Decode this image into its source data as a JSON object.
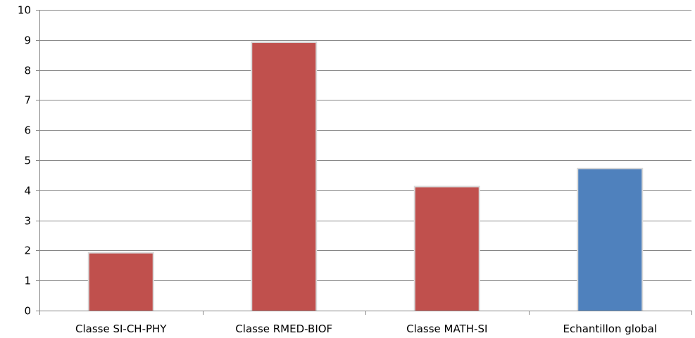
{
  "chart_data": {
    "type": "bar",
    "title": "",
    "xlabel": "",
    "ylabel": "",
    "categories": [
      "Classe SI-CH-PHY",
      "Classe RMED-BIOF",
      "Classe MATH-SI",
      "Echantillon global"
    ],
    "values": [
      1.9,
      8.9,
      4.1,
      4.7
    ],
    "bar_colors": [
      "#c0504d",
      "#c0504d",
      "#c0504d",
      "#4f81bd"
    ],
    "ylim": [
      0,
      10
    ],
    "yticks": [
      0,
      1,
      2,
      3,
      4,
      5,
      6,
      7,
      8,
      9,
      10
    ],
    "grid": true,
    "legend": "none"
  }
}
